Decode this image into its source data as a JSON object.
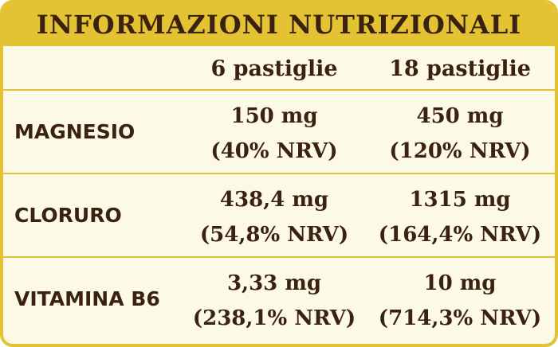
{
  "title": "INFORMAZIONI NUTRIZIONALI",
  "colors": {
    "border_gold": "#e3c233",
    "background_cream": "#fdf9e7",
    "text_brown": "#3b2210"
  },
  "columns": [
    "6 pastiglie",
    "18 pastiglie"
  ],
  "rows": [
    {
      "label": "MAGNESIO",
      "cells": [
        {
          "amount": "150 mg",
          "nrv": "(40% NRV)"
        },
        {
          "amount": "450 mg",
          "nrv": "(120% NRV)"
        }
      ]
    },
    {
      "label": "CLORURO",
      "cells": [
        {
          "amount": "438,4 mg",
          "nrv": "(54,8% NRV)"
        },
        {
          "amount": "1315 mg",
          "nrv": "(164,4% NRV)"
        }
      ]
    },
    {
      "label": "VITAMINA B6",
      "cells": [
        {
          "amount": "3,33 mg",
          "nrv": "(238,1% NRV)"
        },
        {
          "amount": "10 mg",
          "nrv": "(714,3% NRV)"
        }
      ]
    }
  ]
}
